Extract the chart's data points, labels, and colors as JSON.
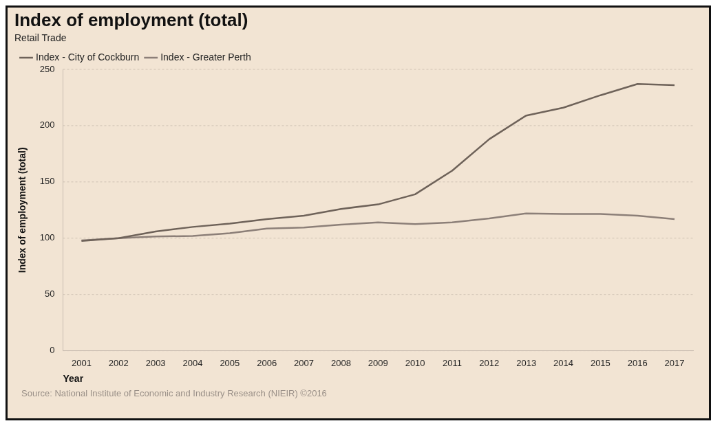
{
  "chart_data": {
    "type": "line",
    "title": "Index of employment (total)",
    "subtitle": "Retail Trade",
    "xlabel": "Year",
    "ylabel": "Index of employment (total)",
    "categories": [
      "2001",
      "2002",
      "2003",
      "2004",
      "2005",
      "2006",
      "2007",
      "2008",
      "2009",
      "2010",
      "2011",
      "2012",
      "2013",
      "2014",
      "2015",
      "2016",
      "2017"
    ],
    "series": [
      {
        "name": "Index - City of Cockburn",
        "color": "#6e6259",
        "values": [
          97.5,
          100,
          106,
          110,
          113,
          117,
          120,
          126,
          130,
          139,
          160,
          188,
          209,
          216,
          227,
          237,
          236
        ]
      },
      {
        "name": "Index - Greater Perth",
        "color": "#8c7f78",
        "values": [
          98,
          100,
          101.5,
          102,
          104.5,
          108.5,
          109.5,
          112,
          114,
          112.5,
          114,
          117.5,
          122,
          121.5,
          121.5,
          120,
          117
        ]
      }
    ],
    "ylim": [
      0,
      250
    ],
    "yticks": [
      0,
      50,
      100,
      150,
      200,
      250
    ],
    "grid": "y",
    "legend": "top left",
    "marker": "none",
    "line_style": "solid",
    "annotations": [
      "Source: National Institute of Economic and Industry Research (NIEIR) ©2016"
    ]
  }
}
